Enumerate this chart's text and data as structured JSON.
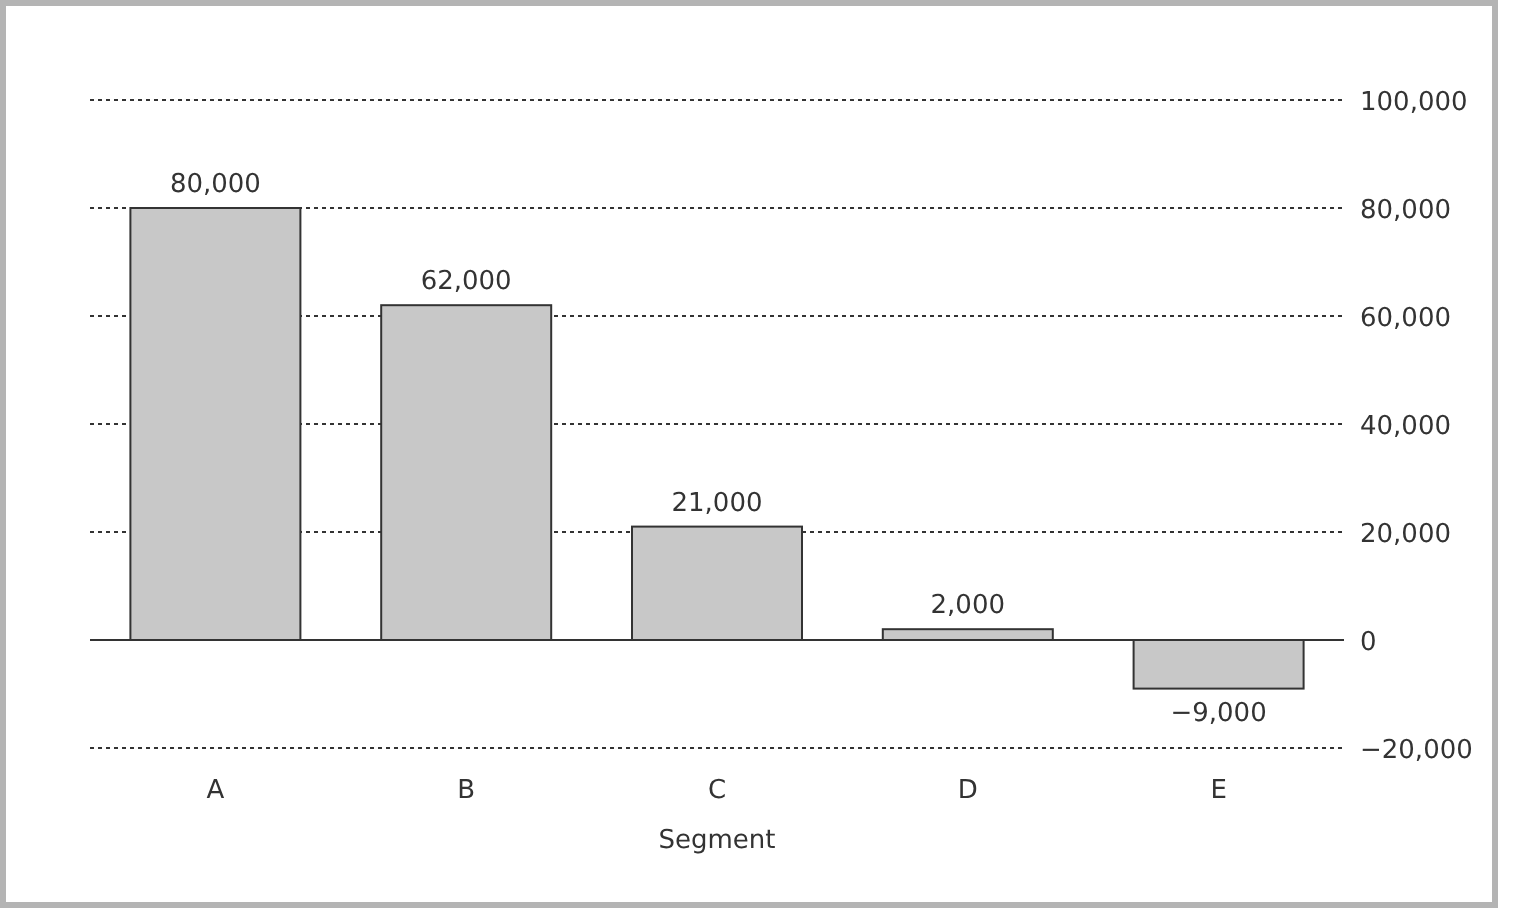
{
  "chart_data": {
    "type": "bar",
    "xlabel": "Segment",
    "categories": [
      "A",
      "B",
      "C",
      "D",
      "E"
    ],
    "values": [
      80000,
      62000,
      21000,
      2000,
      -9000
    ],
    "color": "#c8c8c8",
    "ylim": [
      -20000,
      100000
    ],
    "yticks": [
      {
        "value": -20000,
        "label": "−20,000"
      },
      0,
      {
        "value": 20000,
        "label": "20,000"
      },
      {
        "value": 40000,
        "label": "40,000"
      },
      {
        "value": 60000,
        "label": "60,000"
      },
      {
        "value": 80000,
        "label": "80,000"
      },
      {
        "value": 100000,
        "label": "100,000"
      }
    ],
    "value_labels": [
      "80,000",
      "62,000",
      "21,000",
      "2,000",
      "−9,000"
    ],
    "grid": "y"
  }
}
